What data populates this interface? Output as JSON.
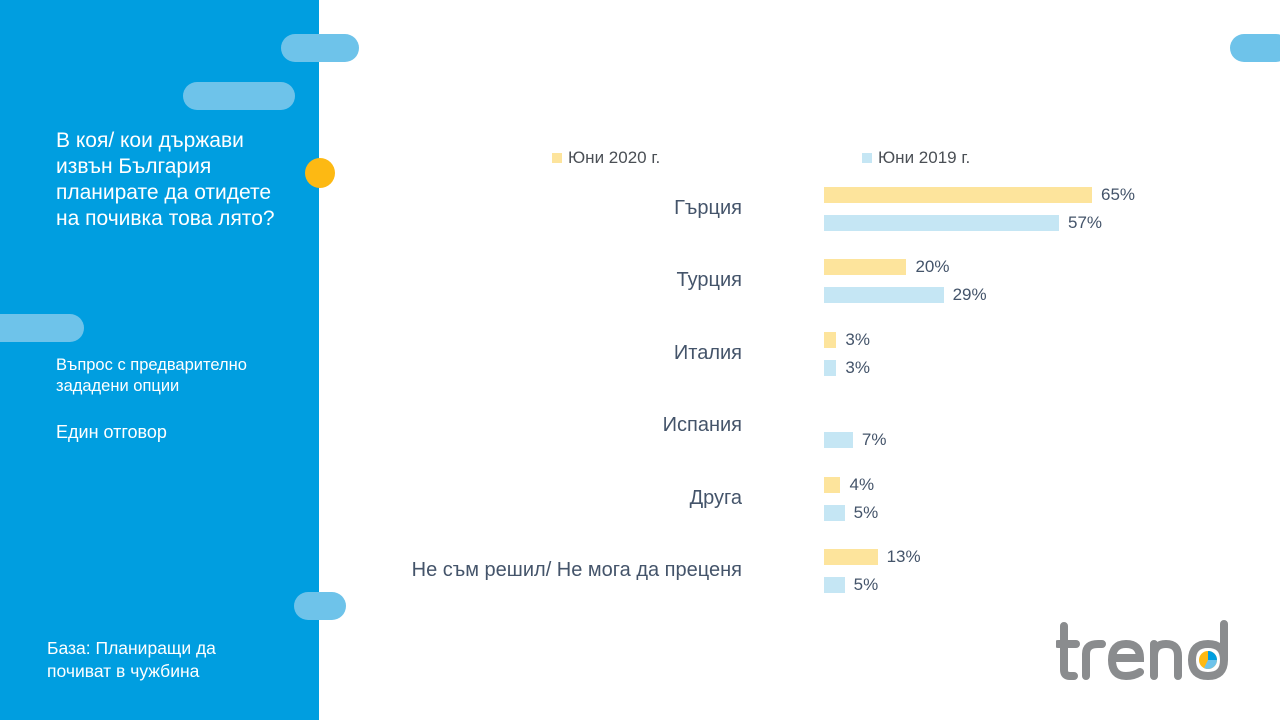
{
  "sidebar": {
    "question": "В коя/ кои държави извън България планирате да отидете на почивка това лято?",
    "question_type": "Въпрос с предварително зададени опции",
    "answer_type": "Един отговор",
    "base": "База: Планиращи да почиват в чужбина"
  },
  "colors": {
    "sidebar": "#009ee0",
    "series_2020": "#fde49c",
    "series_2019": "#c5e6f4",
    "accent_dot": "#fdb913"
  },
  "logo": {
    "icon": "trend-logo"
  },
  "chart_data": {
    "type": "bar",
    "orientation": "horizontal",
    "categories": [
      "Гърция",
      "Турция",
      "Италия",
      "Испания",
      "Друга",
      "Не съм решил/ Не мога да преценя"
    ],
    "series": [
      {
        "name": "Юни 2020 г.",
        "values": [
          65,
          20,
          3,
          0,
          4,
          13
        ],
        "labels": [
          "65%",
          "20%",
          "3%",
          "",
          "4%",
          "13%"
        ],
        "color": "#fde49c"
      },
      {
        "name": "Юни 2019 г.",
        "values": [
          57,
          29,
          3,
          7,
          5,
          5
        ],
        "labels": [
          "57%",
          "29%",
          "3%",
          "7%",
          "5%",
          "5%"
        ],
        "color": "#c5e6f4"
      }
    ],
    "legend_position": "top",
    "grid": false
  }
}
